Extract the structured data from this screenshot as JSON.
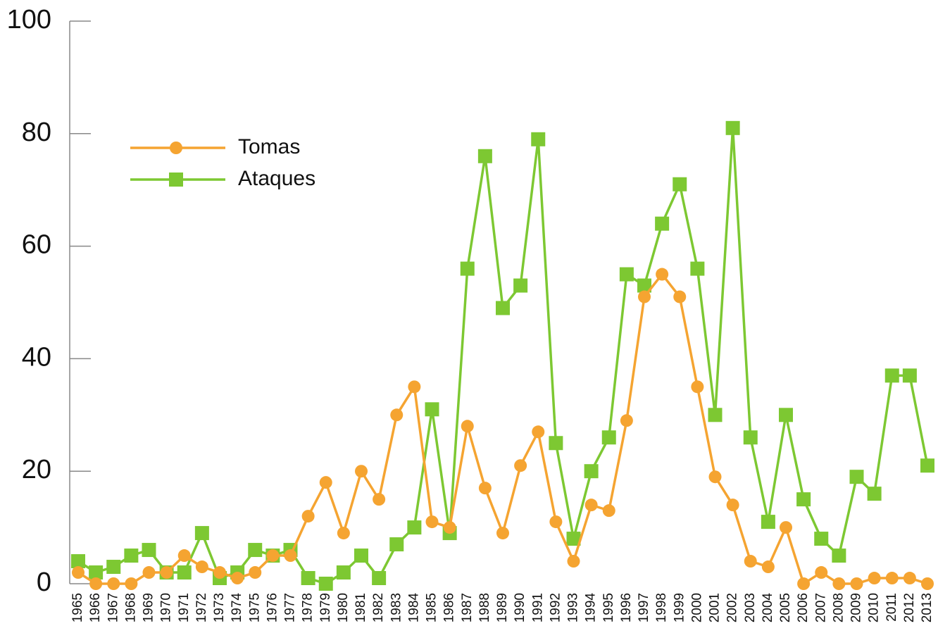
{
  "chart_data": {
    "type": "line",
    "categories": [
      "1965",
      "1966",
      "1967",
      "1968",
      "1969",
      "1970",
      "1971",
      "1972",
      "1973",
      "1974",
      "1975",
      "1976",
      "1977",
      "1978",
      "1979",
      "1980",
      "1981",
      "1982",
      "1983",
      "1984",
      "1985",
      "1986",
      "1987",
      "1988",
      "1989",
      "1990",
      "1991",
      "1992",
      "1993",
      "1994",
      "1995",
      "1996",
      "1997",
      "1998",
      "1999",
      "2000",
      "2001",
      "2002",
      "2003",
      "2004",
      "2005",
      "2006",
      "2007",
      "2008",
      "2009",
      "2010",
      "2011",
      "2012",
      "2013"
    ],
    "series": [
      {
        "name": "Tomas",
        "color": "#f5a431",
        "marker": "circle",
        "values": [
          2,
          0,
          0,
          0,
          2,
          2,
          5,
          3,
          2,
          1,
          2,
          5,
          5,
          12,
          18,
          9,
          20,
          15,
          30,
          35,
          11,
          10,
          28,
          17,
          9,
          21,
          27,
          11,
          4,
          14,
          13,
          29,
          51,
          55,
          51,
          35,
          19,
          14,
          4,
          3,
          10,
          0,
          2,
          0,
          0,
          1,
          1,
          1,
          0
        ]
      },
      {
        "name": "Ataques",
        "color": "#7dc832",
        "marker": "square",
        "values": [
          4,
          2,
          3,
          5,
          6,
          2,
          2,
          9,
          1,
          2,
          6,
          5,
          6,
          1,
          0,
          2,
          5,
          1,
          7,
          10,
          31,
          9,
          56,
          76,
          49,
          53,
          79,
          25,
          8,
          20,
          26,
          55,
          53,
          64,
          71,
          56,
          30,
          81,
          26,
          11,
          30,
          15,
          8,
          5,
          19,
          16,
          37,
          37,
          21
        ]
      }
    ],
    "ylim": [
      0,
      100
    ],
    "yticks": [
      0,
      20,
      40,
      60,
      80,
      100
    ],
    "grid": false,
    "legend": "upper left"
  }
}
